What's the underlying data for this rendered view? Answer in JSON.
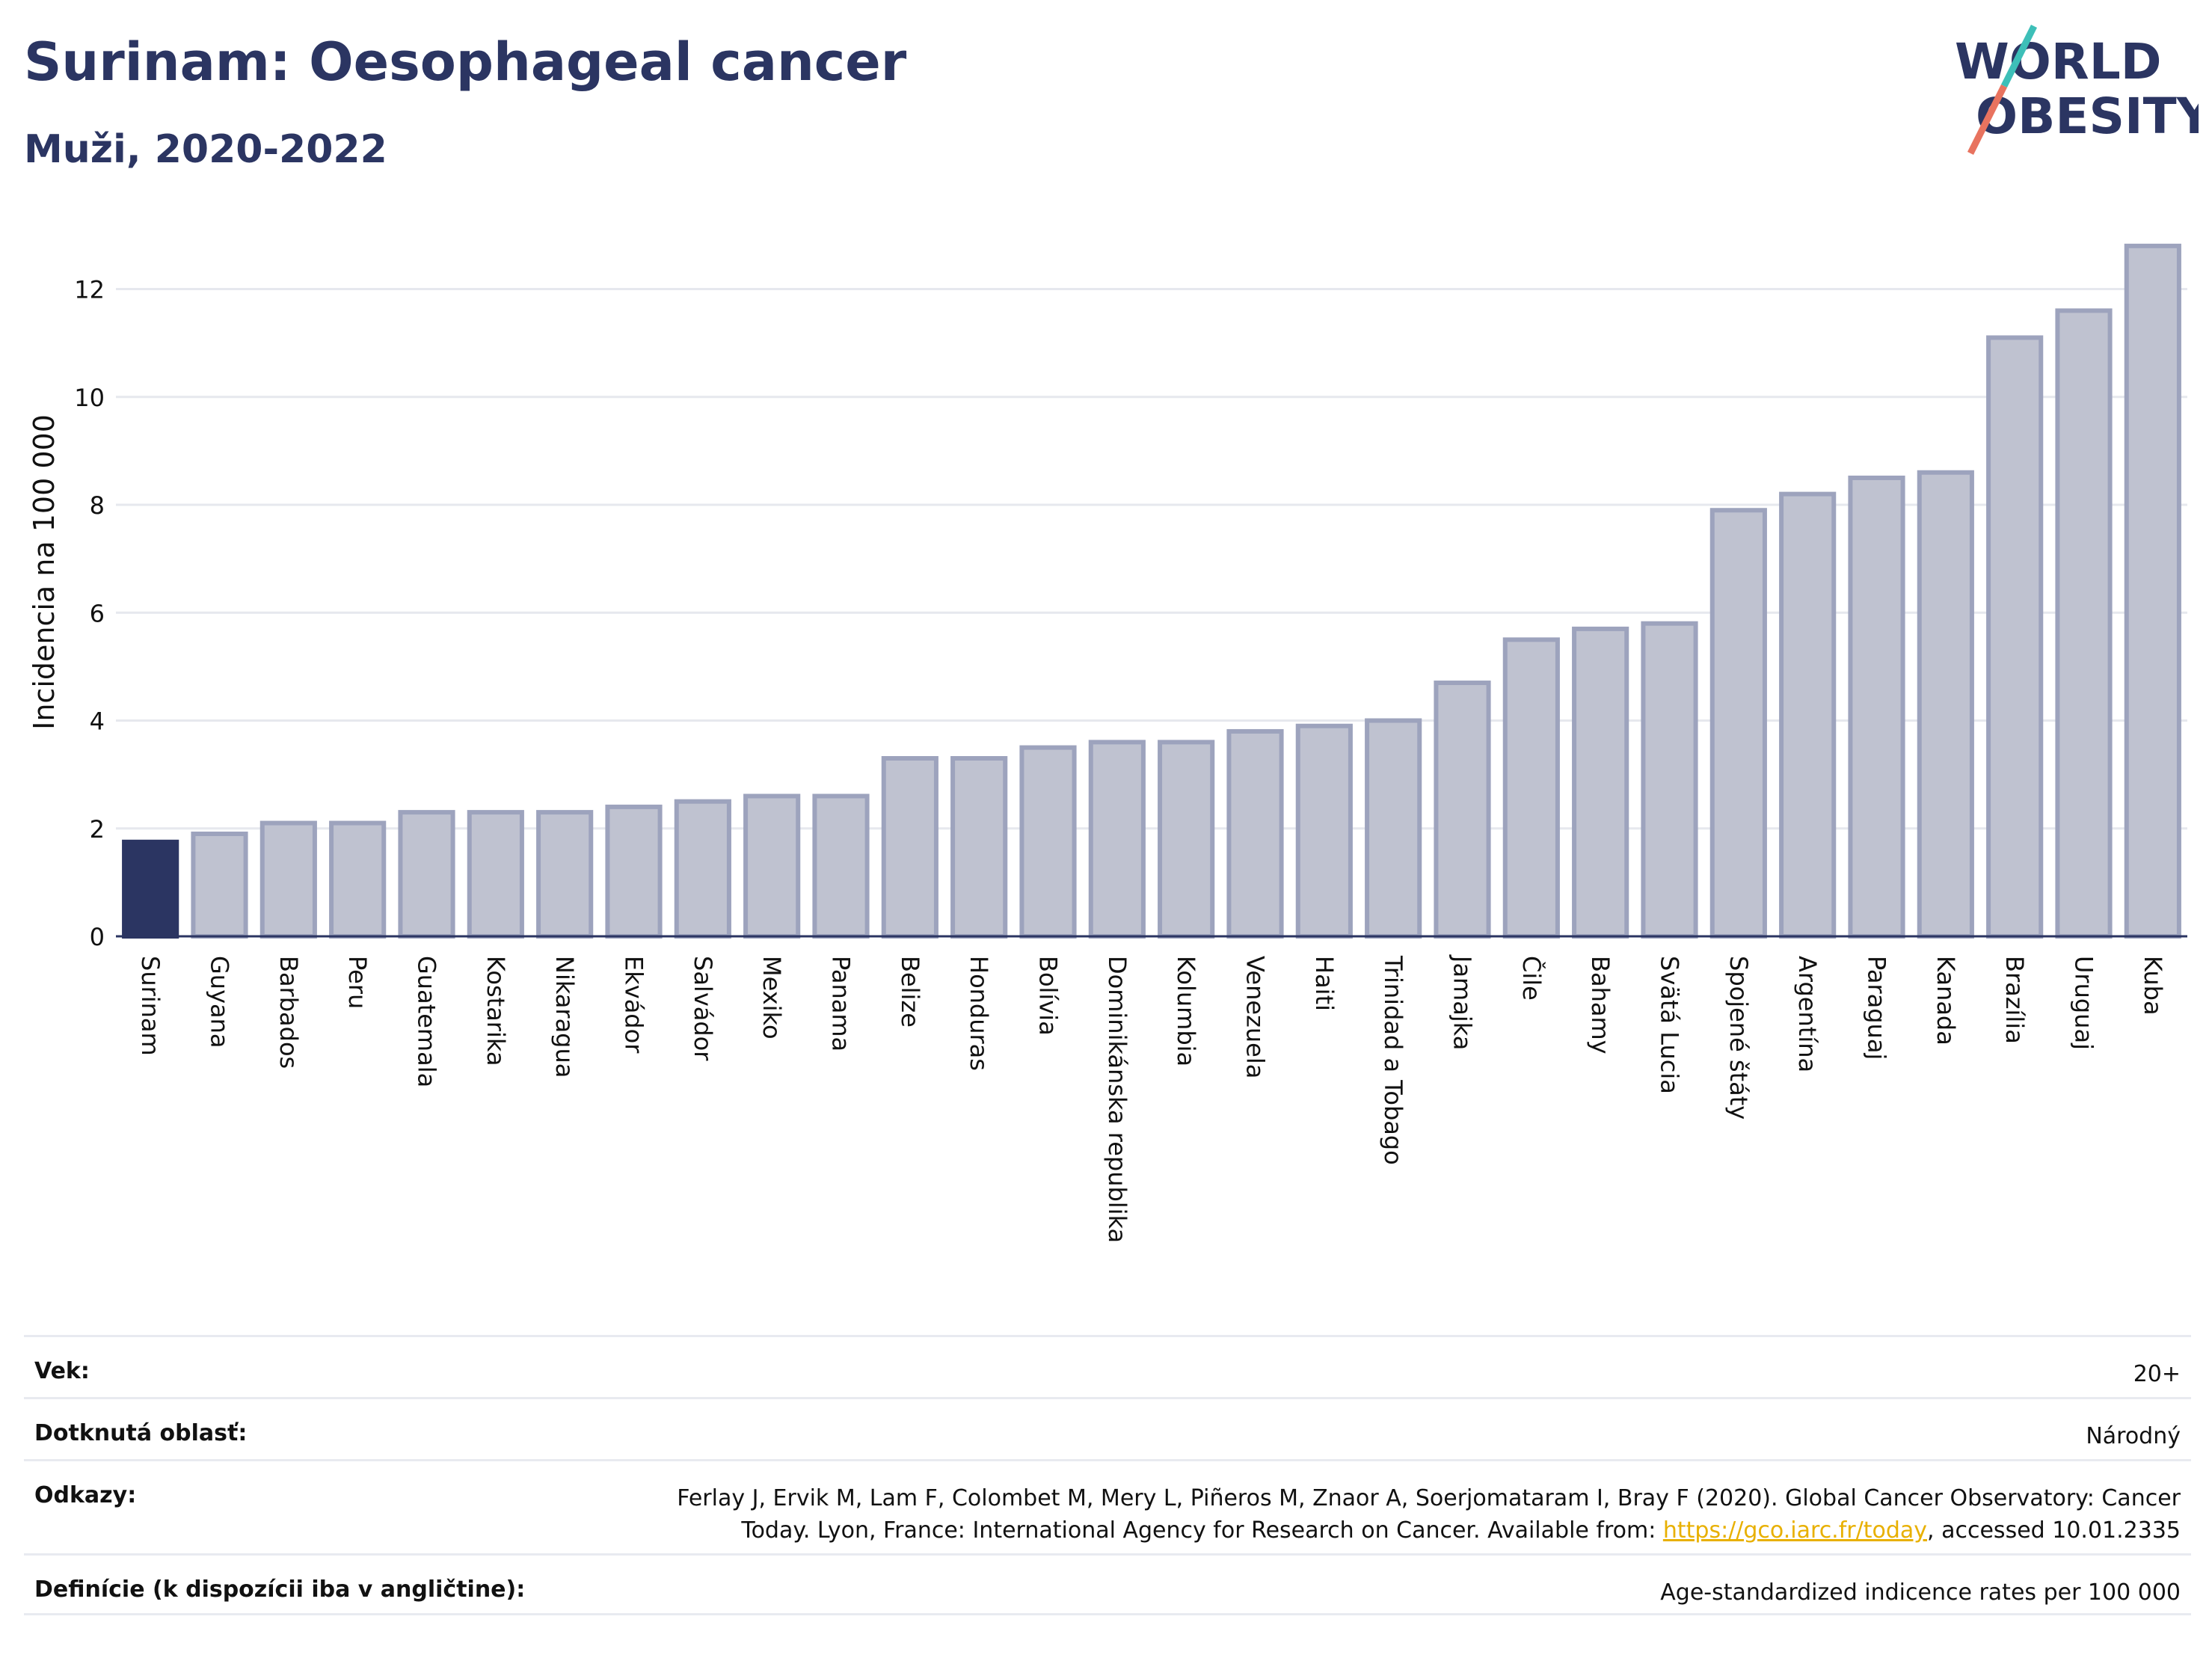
{
  "header": {
    "title": "Surinam: Oesophageal cancer",
    "subtitle": "Muži, 2020-2022"
  },
  "logo": {
    "line1": "WORLD",
    "line2": "OBESITY",
    "accent_colors": [
      "#3dbfb8",
      "#e8735f"
    ]
  },
  "colors": {
    "highlight": "#2b3562",
    "bar_fill": "#bfc2d0",
    "bar_stroke": "#9da3bd",
    "text": "#2b3562"
  },
  "chart_data": {
    "type": "bar",
    "ylabel": "Incidencia na 100 000",
    "ylim": [
      0,
      13.2
    ],
    "yticks": [
      0,
      2,
      4,
      6,
      8,
      10,
      12
    ],
    "grid": true,
    "highlight_category": "Surinam",
    "categories": [
      "Surinam",
      "Guyana",
      "Barbados",
      "Peru",
      "Guatemala",
      "Kostarika",
      "Nikaragua",
      "Ekvádor",
      "Salvádor",
      "Mexiko",
      "Panama",
      "Belize",
      "Honduras",
      "Bolívia",
      "Dominikánska republika",
      "Kolumbia",
      "Venezuela",
      "Haiti",
      "Trinidad a Tobago",
      "Jamajka",
      "Čile",
      "Bahamy",
      "Svätá Lucia",
      "Spojené štáty",
      "Argentína",
      "Paraguaj",
      "Kanada",
      "Brazília",
      "Uruguaj",
      "Kuba"
    ],
    "values": [
      1.75,
      1.9,
      2.1,
      2.1,
      2.3,
      2.3,
      2.3,
      2.4,
      2.5,
      2.6,
      2.6,
      3.3,
      3.3,
      3.5,
      3.6,
      3.6,
      3.8,
      3.9,
      4.0,
      4.7,
      5.5,
      5.7,
      5.8,
      7.9,
      8.2,
      8.5,
      8.6,
      11.1,
      11.6,
      12.8
    ]
  },
  "info": [
    {
      "key": "Vek:",
      "value": "20+"
    },
    {
      "key": "Dotknutá oblasť:",
      "value": "Národný"
    },
    {
      "key": "Odkazy:",
      "value_line1": "Ferlay J, Ervik M, Lam F, Colombet M, Mery L, Piñeros M, Znaor A, Soerjomataram I, Bray F (2020). Global Cancer Observatory: Cancer",
      "value_line2_pre": "Today. Lyon, France: International Agency for Research on Cancer. Available from: ",
      "link": "https://gco.iarc.fr/today",
      "value_line2_post": ", accessed 10.01.2335"
    },
    {
      "key": "Definície (k dispozícii iba v angličtine):",
      "value": "Age-standardized indicence rates per 100 000"
    }
  ]
}
